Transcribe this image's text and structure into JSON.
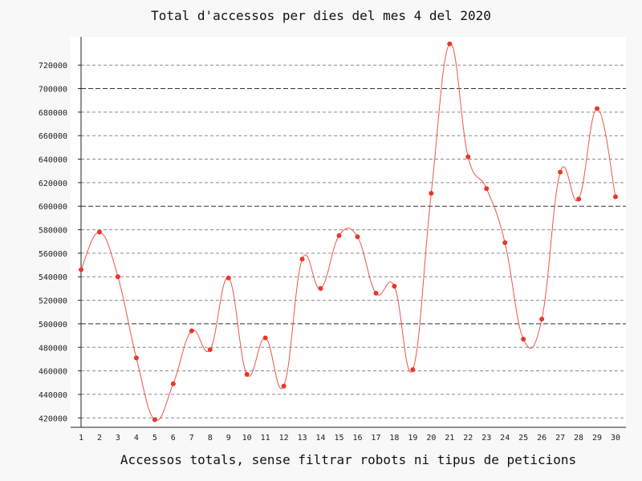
{
  "chart_data": {
    "type": "line",
    "title": "Total d'accessos per dies del mes 4 del 2020",
    "xlabel": "Accessos totals, sense filtrar robots ni tipus de peticions",
    "ylabel": "",
    "x": [
      1,
      2,
      3,
      4,
      5,
      6,
      7,
      8,
      9,
      10,
      11,
      12,
      13,
      14,
      15,
      16,
      17,
      18,
      19,
      20,
      21,
      22,
      23,
      24,
      25,
      26,
      27,
      28,
      29,
      30
    ],
    "series": [
      {
        "values": [
          546000,
          578000,
          540000,
          471000,
          418500,
          449000,
          494000,
          478000,
          539000,
          457000,
          488000,
          447000,
          555000,
          530000,
          575000,
          574000,
          526000,
          532000,
          461000,
          611000,
          738000,
          642000,
          615000,
          569000,
          487000,
          504000,
          629000,
          606000,
          683000,
          608000
        ]
      }
    ],
    "yticks": [
      420000,
      440000,
      460000,
      480000,
      500000,
      520000,
      540000,
      560000,
      580000,
      600000,
      620000,
      640000,
      660000,
      680000,
      700000,
      720000
    ],
    "ylim": [
      412000,
      744000
    ],
    "grid": true,
    "line_color": "#ee5544",
    "point_color": "#e8372a"
  }
}
